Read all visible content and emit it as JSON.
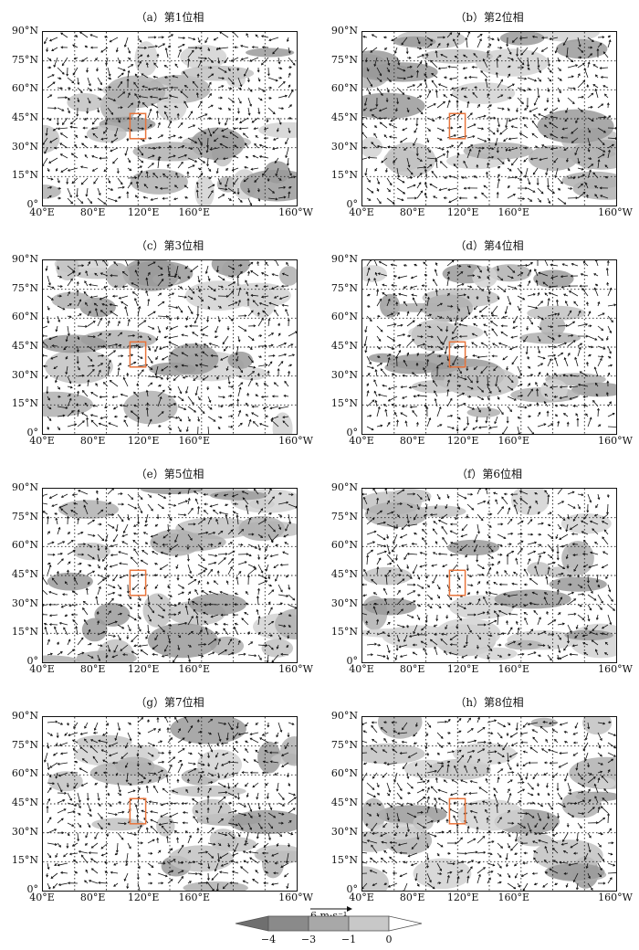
{
  "panels": [
    {
      "title": "（a）第1位相"
    },
    {
      "title": "（b）第2位相"
    },
    {
      "title": "（c）第3位相"
    },
    {
      "title": "（d）第4位相"
    },
    {
      "title": "（e）第5位相"
    },
    {
      "title": "（f）第6位相"
    },
    {
      "title": "（g）第7位相"
    },
    {
      "title": "（h）第8位相"
    }
  ],
  "lat_labels": [
    "90°N",
    "75°N",
    "60°N",
    "45°N",
    "30°N",
    "15°N",
    "0°"
  ],
  "lon_labels": [
    "40°E",
    "80°E",
    "120°E",
    "160°E",
    "160°W"
  ],
  "reference_vector": {
    "label": "6 m·s⁻¹"
  },
  "colorbar": {
    "ticks": [
      "−4",
      "−3",
      "−1",
      "0"
    ],
    "colors": [
      "#8a8a8a",
      "#a8a8a8",
      "#c8c8c8",
      "#e4e4e4"
    ]
  },
  "style": {
    "box_color": "#e8743b",
    "shade_color": "#bdbdbd"
  }
}
